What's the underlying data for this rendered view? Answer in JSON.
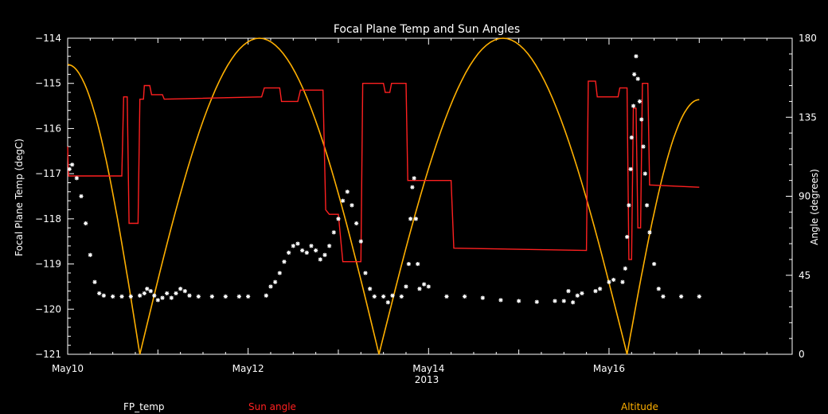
{
  "chart_data": {
    "type": "line",
    "title": "Focal Plane Temp and Sun Angles",
    "xlabel": "2013",
    "ylabel_left": "Focal Plane Temp (degC)",
    "ylabel_right": "Angle (degrees)",
    "xlim": [
      0,
      8.03
    ],
    "ylim_left": [
      -121,
      -114
    ],
    "ylim_right": [
      0,
      180
    ],
    "x_ticks": [
      {
        "x": 0,
        "label": "May10"
      },
      {
        "x": 2,
        "label": "May12"
      },
      {
        "x": 4,
        "label": "May14"
      },
      {
        "x": 6,
        "label": "May16"
      }
    ],
    "y_ticks_left": [
      -121,
      -120,
      -119,
      -118,
      -117,
      -116,
      -115,
      -114
    ],
    "y_ticks_right": [
      0,
      45,
      90,
      135,
      180
    ],
    "colors": {
      "background": "#000000",
      "axes": "#ffffff",
      "fp_temp": "#ffffff",
      "sun_angle": "#ff2020",
      "altitude": "#ffb000"
    },
    "legend": [
      {
        "label": "FP_temp",
        "color": "#ffffff"
      },
      {
        "label": "Sun angle",
        "color": "#ff2020"
      },
      {
        "label": "Altitude",
        "color": "#ffb000"
      }
    ],
    "series": [
      {
        "name": "FP_temp",
        "axis": "left",
        "style": "points",
        "points": [
          [
            0.02,
            -116.9
          ],
          [
            0.05,
            -116.8
          ],
          [
            0.1,
            -117.1
          ],
          [
            0.15,
            -117.5
          ],
          [
            0.2,
            -118.1
          ],
          [
            0.25,
            -118.8
          ],
          [
            0.3,
            -119.4
          ],
          [
            0.35,
            -119.65
          ],
          [
            0.4,
            -119.7
          ],
          [
            0.5,
            -119.72
          ],
          [
            0.6,
            -119.72
          ],
          [
            0.7,
            -119.72
          ],
          [
            0.8,
            -119.7
          ],
          [
            0.85,
            -119.65
          ],
          [
            0.88,
            -119.55
          ],
          [
            0.92,
            -119.6
          ],
          [
            0.96,
            -119.7
          ],
          [
            1.0,
            -119.8
          ],
          [
            1.05,
            -119.75
          ],
          [
            1.1,
            -119.65
          ],
          [
            1.15,
            -119.75
          ],
          [
            1.2,
            -119.65
          ],
          [
            1.25,
            -119.55
          ],
          [
            1.3,
            -119.6
          ],
          [
            1.35,
            -119.7
          ],
          [
            1.45,
            -119.72
          ],
          [
            1.6,
            -119.72
          ],
          [
            1.75,
            -119.72
          ],
          [
            1.9,
            -119.72
          ],
          [
            2.0,
            -119.72
          ],
          [
            2.2,
            -119.7
          ],
          [
            2.25,
            -119.5
          ],
          [
            2.3,
            -119.4
          ],
          [
            2.35,
            -119.2
          ],
          [
            2.4,
            -118.95
          ],
          [
            2.45,
            -118.75
          ],
          [
            2.5,
            -118.6
          ],
          [
            2.55,
            -118.55
          ],
          [
            2.6,
            -118.7
          ],
          [
            2.65,
            -118.75
          ],
          [
            2.7,
            -118.6
          ],
          [
            2.75,
            -118.7
          ],
          [
            2.8,
            -118.9
          ],
          [
            2.85,
            -118.8
          ],
          [
            2.9,
            -118.6
          ],
          [
            2.95,
            -118.3
          ],
          [
            3.0,
            -118.0
          ],
          [
            3.05,
            -117.6
          ],
          [
            3.1,
            -117.4
          ],
          [
            3.15,
            -117.7
          ],
          [
            3.2,
            -118.1
          ],
          [
            3.25,
            -118.5
          ],
          [
            3.3,
            -119.2
          ],
          [
            3.35,
            -119.55
          ],
          [
            3.4,
            -119.72
          ],
          [
            3.5,
            -119.72
          ],
          [
            3.55,
            -119.85
          ],
          [
            3.6,
            -119.7
          ],
          [
            3.7,
            -119.72
          ],
          [
            3.75,
            -119.5
          ],
          [
            3.78,
            -119.0
          ],
          [
            3.8,
            -118.0
          ],
          [
            3.82,
            -117.3
          ],
          [
            3.84,
            -117.1
          ],
          [
            3.86,
            -118.0
          ],
          [
            3.88,
            -119.0
          ],
          [
            3.9,
            -119.55
          ],
          [
            3.95,
            -119.45
          ],
          [
            4.0,
            -119.5
          ],
          [
            4.2,
            -119.72
          ],
          [
            4.4,
            -119.72
          ],
          [
            4.6,
            -119.75
          ],
          [
            4.8,
            -119.8
          ],
          [
            5.0,
            -119.82
          ],
          [
            5.2,
            -119.84
          ],
          [
            5.4,
            -119.82
          ],
          [
            5.5,
            -119.82
          ],
          [
            5.55,
            -119.6
          ],
          [
            5.6,
            -119.85
          ],
          [
            5.65,
            -119.7
          ],
          [
            5.7,
            -119.65
          ],
          [
            5.85,
            -119.6
          ],
          [
            5.9,
            -119.55
          ],
          [
            6.0,
            -119.4
          ],
          [
            6.05,
            -119.35
          ],
          [
            6.15,
            -119.4
          ],
          [
            6.18,
            -119.1
          ],
          [
            6.2,
            -118.4
          ],
          [
            6.22,
            -117.7
          ],
          [
            6.24,
            -116.9
          ],
          [
            6.25,
            -116.2
          ],
          [
            6.27,
            -115.5
          ],
          [
            6.28,
            -114.8
          ],
          [
            6.3,
            -114.4
          ],
          [
            6.32,
            -114.9
          ],
          [
            6.34,
            -115.4
          ],
          [
            6.36,
            -115.8
          ],
          [
            6.38,
            -116.4
          ],
          [
            6.4,
            -117.0
          ],
          [
            6.42,
            -117.7
          ],
          [
            6.45,
            -118.3
          ],
          [
            6.5,
            -119.0
          ],
          [
            6.55,
            -119.55
          ],
          [
            6.6,
            -119.72
          ],
          [
            6.8,
            -119.72
          ],
          [
            7.0,
            -119.72
          ]
        ]
      },
      {
        "name": "Sun angle",
        "axis": "left",
        "style": "step",
        "points": [
          [
            0.0,
            -116.4
          ],
          [
            0.01,
            -117.05
          ],
          [
            0.6,
            -117.05
          ],
          [
            0.62,
            -115.3
          ],
          [
            0.66,
            -115.3
          ],
          [
            0.68,
            -118.1
          ],
          [
            0.78,
            -118.1
          ],
          [
            0.8,
            -115.35
          ],
          [
            0.84,
            -115.35
          ],
          [
            0.85,
            -115.05
          ],
          [
            0.91,
            -115.05
          ],
          [
            0.93,
            -115.25
          ],
          [
            1.05,
            -115.25
          ],
          [
            1.07,
            -115.35
          ],
          [
            2.15,
            -115.3
          ],
          [
            2.18,
            -115.1
          ],
          [
            2.35,
            -115.1
          ],
          [
            2.37,
            -115.4
          ],
          [
            2.55,
            -115.4
          ],
          [
            2.58,
            -115.15
          ],
          [
            2.83,
            -115.15
          ],
          [
            2.86,
            -117.8
          ],
          [
            2.9,
            -117.9
          ],
          [
            3.0,
            -117.9
          ],
          [
            3.05,
            -118.95
          ],
          [
            3.25,
            -118.95
          ],
          [
            3.27,
            -115.0
          ],
          [
            3.5,
            -115.0
          ],
          [
            3.52,
            -115.2
          ],
          [
            3.57,
            -115.2
          ],
          [
            3.59,
            -115.0
          ],
          [
            3.75,
            -115.0
          ],
          [
            3.77,
            -117.15
          ],
          [
            4.25,
            -117.15
          ],
          [
            4.28,
            -118.65
          ],
          [
            5.75,
            -118.7
          ],
          [
            5.77,
            -114.95
          ],
          [
            5.85,
            -114.95
          ],
          [
            5.87,
            -115.3
          ],
          [
            6.1,
            -115.3
          ],
          [
            6.12,
            -115.1
          ],
          [
            6.2,
            -115.1
          ],
          [
            6.22,
            -118.9
          ],
          [
            6.25,
            -118.9
          ],
          [
            6.27,
            -115.55
          ],
          [
            6.3,
            -115.55
          ],
          [
            6.32,
            -118.2
          ],
          [
            6.35,
            -118.2
          ],
          [
            6.37,
            -115.0
          ],
          [
            6.43,
            -115.0
          ],
          [
            6.45,
            -117.25
          ],
          [
            7.0,
            -117.3
          ]
        ]
      },
      {
        "name": "Altitude",
        "axis": "right",
        "style": "line",
        "arcs": [
          {
            "x0": 0.0,
            "x1": 0.8,
            "y0": 165,
            "y1": 0
          },
          {
            "x0": 0.8,
            "x1": 3.45,
            "peak": 180
          },
          {
            "x0": 3.45,
            "x1": 6.2,
            "peak": 180
          },
          {
            "x0": 6.2,
            "x1": 7.0,
            "y0": 0,
            "y1": 145
          }
        ]
      }
    ]
  }
}
